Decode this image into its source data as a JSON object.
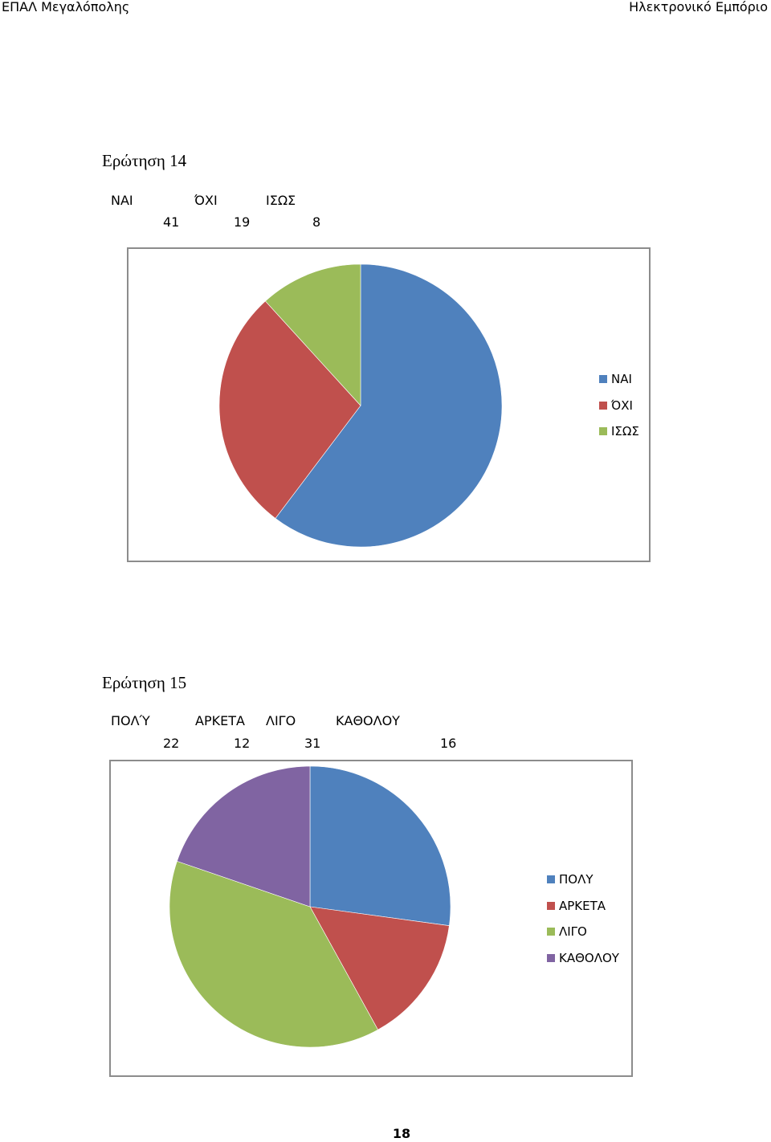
{
  "header": {
    "left": "ΕΠΑΛ Μεγαλόπολης",
    "right": "Ηλεκτρονικό Εμπόριο"
  },
  "page_number": "18",
  "chart_data": [
    {
      "type": "pie",
      "title": "Ερώτηση 14",
      "categories": [
        "ΝΑΙ",
        "ΌΧΙ",
        "ΙΣΩΣ"
      ],
      "legend_labels": [
        "ΝΑΙ",
        "ΌΧΙ",
        "ΙΣΩΣ"
      ],
      "values": [
        41,
        19,
        8
      ],
      "colors": [
        "#4F81BD",
        "#C0504D",
        "#9BBB59"
      ],
      "legend": "right"
    },
    {
      "type": "pie",
      "title": "Ερώτηση 15",
      "categories": [
        "ΠΟΛΎ",
        "ΑΡΚΕΤΑ",
        "ΛΙΓΟ",
        "ΚΑΘΟΛΟΥ"
      ],
      "legend_labels": [
        "ΠΟΛΥ",
        "ΑΡΚΕΤΑ",
        "ΛΙΓΟ",
        "ΚΑΘΟΛΟΥ"
      ],
      "values": [
        22,
        12,
        31,
        16
      ],
      "colors": [
        "#4F81BD",
        "#C0504D",
        "#9BBB59",
        "#8064A2"
      ],
      "legend": "right"
    }
  ]
}
